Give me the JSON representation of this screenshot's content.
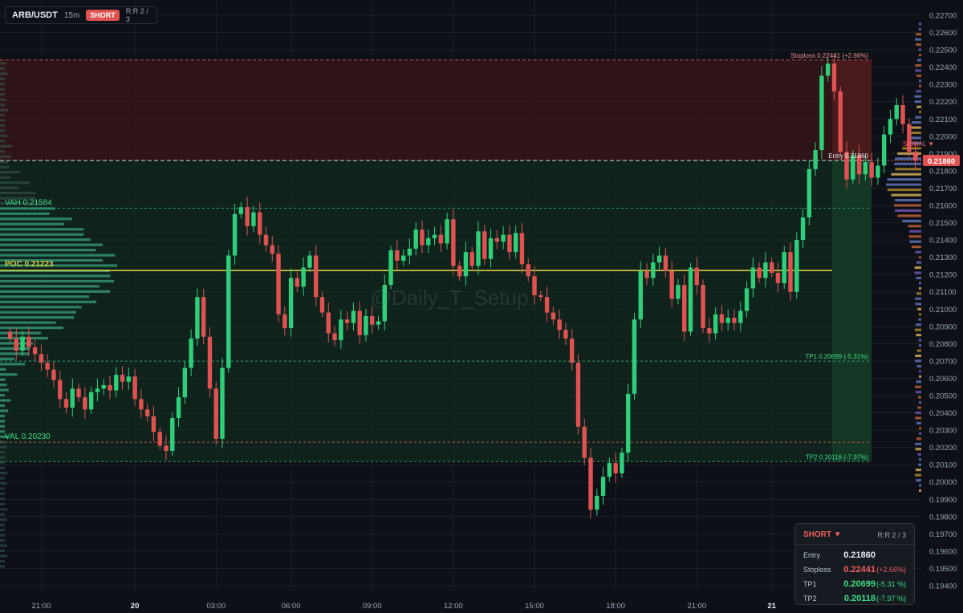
{
  "header": {
    "pair": "ARB/USDT",
    "timeframe": "15m",
    "side": "SHORT",
    "rr": "R:R 2 / 3"
  },
  "watermark": "@Daily_T_Setup",
  "colors": {
    "up": "#2fcf7a",
    "down": "#e05252",
    "poc": "#d9c93a",
    "background": "#0d1117"
  },
  "levels": {
    "stoploss": {
      "value": 0.22441,
      "label": "Stoploss 0.22441 (+2.66%)"
    },
    "entry": {
      "value": 0.2186,
      "label": "Entry 0.21860",
      "tag": "0.21860"
    },
    "vah": {
      "value": 0.21584,
      "label": "VAH  0.21584"
    },
    "poc": {
      "value": 0.21223,
      "label": "POC  0.21223"
    },
    "tp1": {
      "value": 0.20699,
      "label": "TP1 0.20699 (-5.31%)"
    },
    "val": {
      "value": 0.2023,
      "label": "VAL  0.20230"
    },
    "tp2": {
      "value": 0.20118,
      "label": "TP2 0.20118 (-7.97%)"
    }
  },
  "signal_label": "SIGNAL ▼",
  "panel": {
    "direction": "SHORT ▼",
    "rr": "R:R 2 / 3",
    "rows": [
      {
        "label": "Entry",
        "value": "0.21860",
        "pct": ""
      },
      {
        "label": "Stoploss",
        "value": "0.22441",
        "pct": "(+2.66%)"
      },
      {
        "label": "TP1",
        "value": "0.20699",
        "pct": "(-5.31 %)"
      },
      {
        "label": "TP2",
        "value": "0.20118",
        "pct": "(-7.97 %)"
      }
    ]
  },
  "chart_data": {
    "type": "candlestick",
    "title": "ARB/USDT 15m",
    "ylim": [
      0.1936,
      0.2268
    ],
    "y_ticks": [
      "0.22700",
      "0.22600",
      "0.22500",
      "0.22400",
      "0.22300",
      "0.22200",
      "0.22100",
      "0.22000",
      "0.21900",
      "0.21800",
      "0.21700",
      "0.21600",
      "0.21500",
      "0.21400",
      "0.21300",
      "0.21200",
      "0.21100",
      "0.21000",
      "0.20900",
      "0.20800",
      "0.20700",
      "0.20600",
      "0.20500",
      "0.20400",
      "0.20300",
      "0.20200",
      "0.20100",
      "0.20000",
      "0.19900",
      "0.19800",
      "0.19700",
      "0.19600",
      "0.19500",
      "0.19400"
    ],
    "x_ticks": [
      {
        "label": "21:00",
        "index": 5,
        "bold": false
      },
      {
        "label": "20",
        "index": 20,
        "bold": true
      },
      {
        "label": "03:00",
        "index": 33,
        "bold": false
      },
      {
        "label": "06:00",
        "index": 45,
        "bold": false
      },
      {
        "label": "09:00",
        "index": 58,
        "bold": false
      },
      {
        "label": "12:00",
        "index": 71,
        "bold": false
      },
      {
        "label": "15:00",
        "index": 84,
        "bold": false
      },
      {
        "label": "18:00",
        "index": 97,
        "bold": false
      },
      {
        "label": "21:00",
        "index": 110,
        "bold": false
      },
      {
        "label": "21",
        "index": 122,
        "bold": true
      }
    ],
    "closes": [
      0.2083,
      0.2076,
      0.2084,
      0.2078,
      0.2074,
      0.2069,
      0.2065,
      0.2059,
      0.2048,
      0.2043,
      0.2054,
      0.2049,
      0.2042,
      0.2052,
      0.2054,
      0.2056,
      0.2053,
      0.2062,
      0.2058,
      0.2061,
      0.2048,
      0.2042,
      0.2038,
      0.2029,
      0.2021,
      0.2018,
      0.2037,
      0.2049,
      0.2066,
      0.2083,
      0.2107,
      0.2084,
      0.2054,
      0.2025,
      0.2066,
      0.2131,
      0.2155,
      0.2159,
      0.2148,
      0.2156,
      0.2143,
      0.2137,
      0.2132,
      0.2097,
      0.2089,
      0.2118,
      0.2113,
      0.2124,
      0.2131,
      0.2107,
      0.2098,
      0.2086,
      0.2082,
      0.2094,
      0.2092,
      0.2099,
      0.2085,
      0.2096,
      0.2091,
      0.2093,
      0.2114,
      0.2134,
      0.2128,
      0.2131,
      0.2135,
      0.2146,
      0.2137,
      0.2141,
      0.2143,
      0.2138,
      0.2152,
      0.2125,
      0.2119,
      0.2133,
      0.2125,
      0.2145,
      0.2129,
      0.2141,
      0.2139,
      0.2143,
      0.2133,
      0.2144,
      0.2126,
      0.2119,
      0.2108,
      0.2107,
      0.2098,
      0.2094,
      0.2088,
      0.2083,
      0.2069,
      0.2032,
      0.2014,
      0.1984,
      0.1992,
      0.2003,
      0.2011,
      0.2005,
      0.2017,
      0.2051,
      0.2094,
      0.2122,
      0.2118,
      0.2127,
      0.2131,
      0.2122,
      0.2106,
      0.2114,
      0.2087,
      0.2124,
      0.2114,
      0.2089,
      0.2086,
      0.2097,
      0.2092,
      0.2095,
      0.2092,
      0.2099,
      0.2112,
      0.2124,
      0.2118,
      0.2127,
      0.2121,
      0.2115,
      0.2133,
      0.211,
      0.214,
      0.2153,
      0.2181,
      0.2192,
      0.2235,
      0.2242,
      0.2226,
      0.2191,
      0.2175,
      0.2189,
      0.2178,
      0.2185,
      0.2176,
      0.2183,
      0.2201,
      0.221,
      0.2218,
      0.2207,
      0.2191,
      0.2186
    ],
    "x_index_offset": 9,
    "price_at_signal": 0.2186
  }
}
